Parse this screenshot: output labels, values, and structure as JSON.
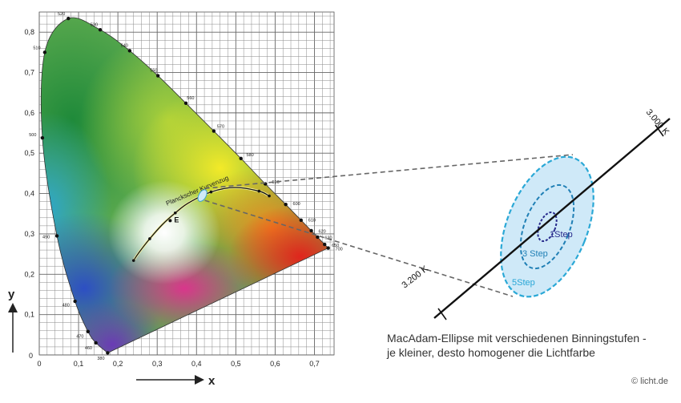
{
  "chart_data": {
    "type": "scatter",
    "xlabel": "x",
    "ylabel": "y",
    "xlim": [
      0,
      0.75
    ],
    "ylim": [
      0,
      0.85
    ],
    "grid": true,
    "x_ticks": [
      {
        "v": 0,
        "label": "0"
      },
      {
        "v": 0.1,
        "label": "0,1"
      },
      {
        "v": 0.2,
        "label": "0,2"
      },
      {
        "v": 0.3,
        "label": "0,3"
      },
      {
        "v": 0.4,
        "label": "0,4"
      },
      {
        "v": 0.5,
        "label": "0,5"
      },
      {
        "v": 0.6,
        "label": "0,6"
      },
      {
        "v": 0.7,
        "label": "0,7"
      }
    ],
    "y_ticks": [
      {
        "v": 0.1,
        "label": "0,1"
      },
      {
        "v": 0.2,
        "label": "0,2"
      },
      {
        "v": 0.3,
        "label": "0,3"
      },
      {
        "v": 0.4,
        "label": "0,4"
      },
      {
        "v": 0.5,
        "label": "0,5"
      },
      {
        "v": 0.6,
        "label": "0,6"
      },
      {
        "v": 0.7,
        "label": "0,7"
      },
      {
        "v": 0.8,
        "label": "0,8"
      }
    ],
    "spectral_locus": [
      {
        "label": "380",
        "x": 0.174,
        "y": 0.005
      },
      {
        "label": "460",
        "x": 0.144,
        "y": 0.03
      },
      {
        "label": "470",
        "x": 0.124,
        "y": 0.058
      },
      {
        "label": "480",
        "x": 0.091,
        "y": 0.133
      },
      {
        "label": "490",
        "x": 0.045,
        "y": 0.295
      },
      {
        "label": "500",
        "x": 0.008,
        "y": 0.538
      },
      {
        "label": "510",
        "x": 0.014,
        "y": 0.75
      },
      {
        "label": "520",
        "x": 0.074,
        "y": 0.834
      },
      {
        "label": "530",
        "x": 0.155,
        "y": 0.806
      },
      {
        "label": "540",
        "x": 0.23,
        "y": 0.754
      },
      {
        "label": "550",
        "x": 0.302,
        "y": 0.692
      },
      {
        "label": "560",
        "x": 0.373,
        "y": 0.624
      },
      {
        "label": "570",
        "x": 0.444,
        "y": 0.555
      },
      {
        "label": "580",
        "x": 0.513,
        "y": 0.487
      },
      {
        "label": "590",
        "x": 0.575,
        "y": 0.424
      },
      {
        "label": "600",
        "x": 0.627,
        "y": 0.373
      },
      {
        "label": "610",
        "x": 0.666,
        "y": 0.334
      },
      {
        "label": "620",
        "x": 0.692,
        "y": 0.308
      },
      {
        "label": "630",
        "x": 0.708,
        "y": 0.292
      },
      {
        "label": "650",
        "x": 0.726,
        "y": 0.274
      },
      {
        "label": "700",
        "x": 0.735,
        "y": 0.265
      },
      {
        "label": "780",
        "x": 0.735,
        "y": 0.265
      }
    ],
    "planckian_locus": {
      "label": "Planckscher Kurvenzug",
      "points": [
        {
          "x": 0.24,
          "y": 0.234
        },
        {
          "x": 0.253,
          "y": 0.253
        },
        {
          "x": 0.281,
          "y": 0.288
        },
        {
          "x": 0.313,
          "y": 0.323
        },
        {
          "x": 0.346,
          "y": 0.352
        },
        {
          "x": 0.38,
          "y": 0.377
        },
        {
          "x": 0.437,
          "y": 0.404
        },
        {
          "x": 0.497,
          "y": 0.415
        },
        {
          "x": 0.559,
          "y": 0.406
        },
        {
          "x": 0.585,
          "y": 0.394
        }
      ]
    },
    "white_point": {
      "label": "E",
      "x": 0.333,
      "y": 0.333
    },
    "ellipse_center": {
      "x": 0.415,
      "y": 0.395
    }
  },
  "detail": {
    "cct_labels": [
      "3.000 K",
      "3.200 K"
    ],
    "ellipses": [
      "5Step",
      "3 Step",
      "1Step"
    ]
  },
  "caption_lines": [
    "MacAdam-Ellipse mit verschiedenen Binningstufen -",
    "je kleiner, desto homogener die Lichtfarbe"
  ],
  "credit": "© licht.de"
}
